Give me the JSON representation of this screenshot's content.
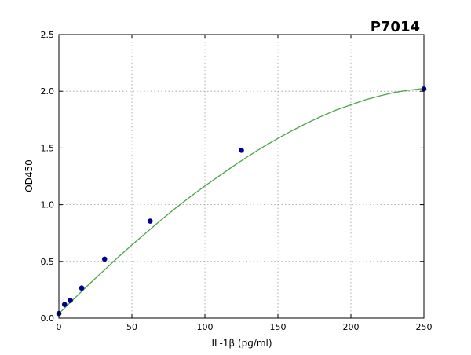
{
  "chart_data": {
    "type": "scatter",
    "title": "P7014",
    "xlabel": "IL-1β (pg/ml)",
    "ylabel": "OD450",
    "xlim": [
      0,
      250
    ],
    "ylim": [
      0,
      2.5
    ],
    "xticks": [
      0,
      50,
      100,
      150,
      200,
      250
    ],
    "yticks": [
      0.0,
      0.5,
      1.0,
      1.5,
      2.0,
      2.5
    ],
    "xtick_labels": [
      "0",
      "50",
      "100",
      "150",
      "200",
      "250"
    ],
    "ytick_labels": [
      "0.0",
      "0.5",
      "1.0",
      "1.5",
      "2.0",
      "2.5"
    ],
    "grid": true,
    "series": [
      {
        "kind": "points",
        "color": "#00008b",
        "x": [
          0,
          3.9,
          7.8,
          15.6,
          31.3,
          62.5,
          125,
          250
        ],
        "y": [
          0.04,
          0.12,
          0.155,
          0.265,
          0.52,
          0.855,
          1.48,
          2.02
        ]
      },
      {
        "kind": "fit-curve",
        "color": "#4aa34a",
        "x": [
          0,
          10,
          20,
          30,
          40,
          50,
          60,
          70,
          80,
          90,
          100,
          110,
          120,
          130,
          140,
          150,
          160,
          170,
          180,
          190,
          200,
          210,
          220,
          230,
          240,
          250
        ],
        "y": [
          0.04,
          0.165,
          0.29,
          0.41,
          0.53,
          0.645,
          0.755,
          0.865,
          0.97,
          1.07,
          1.165,
          1.255,
          1.345,
          1.43,
          1.51,
          1.585,
          1.655,
          1.72,
          1.78,
          1.835,
          1.88,
          1.925,
          1.96,
          1.99,
          2.01,
          2.025
        ]
      }
    ]
  }
}
